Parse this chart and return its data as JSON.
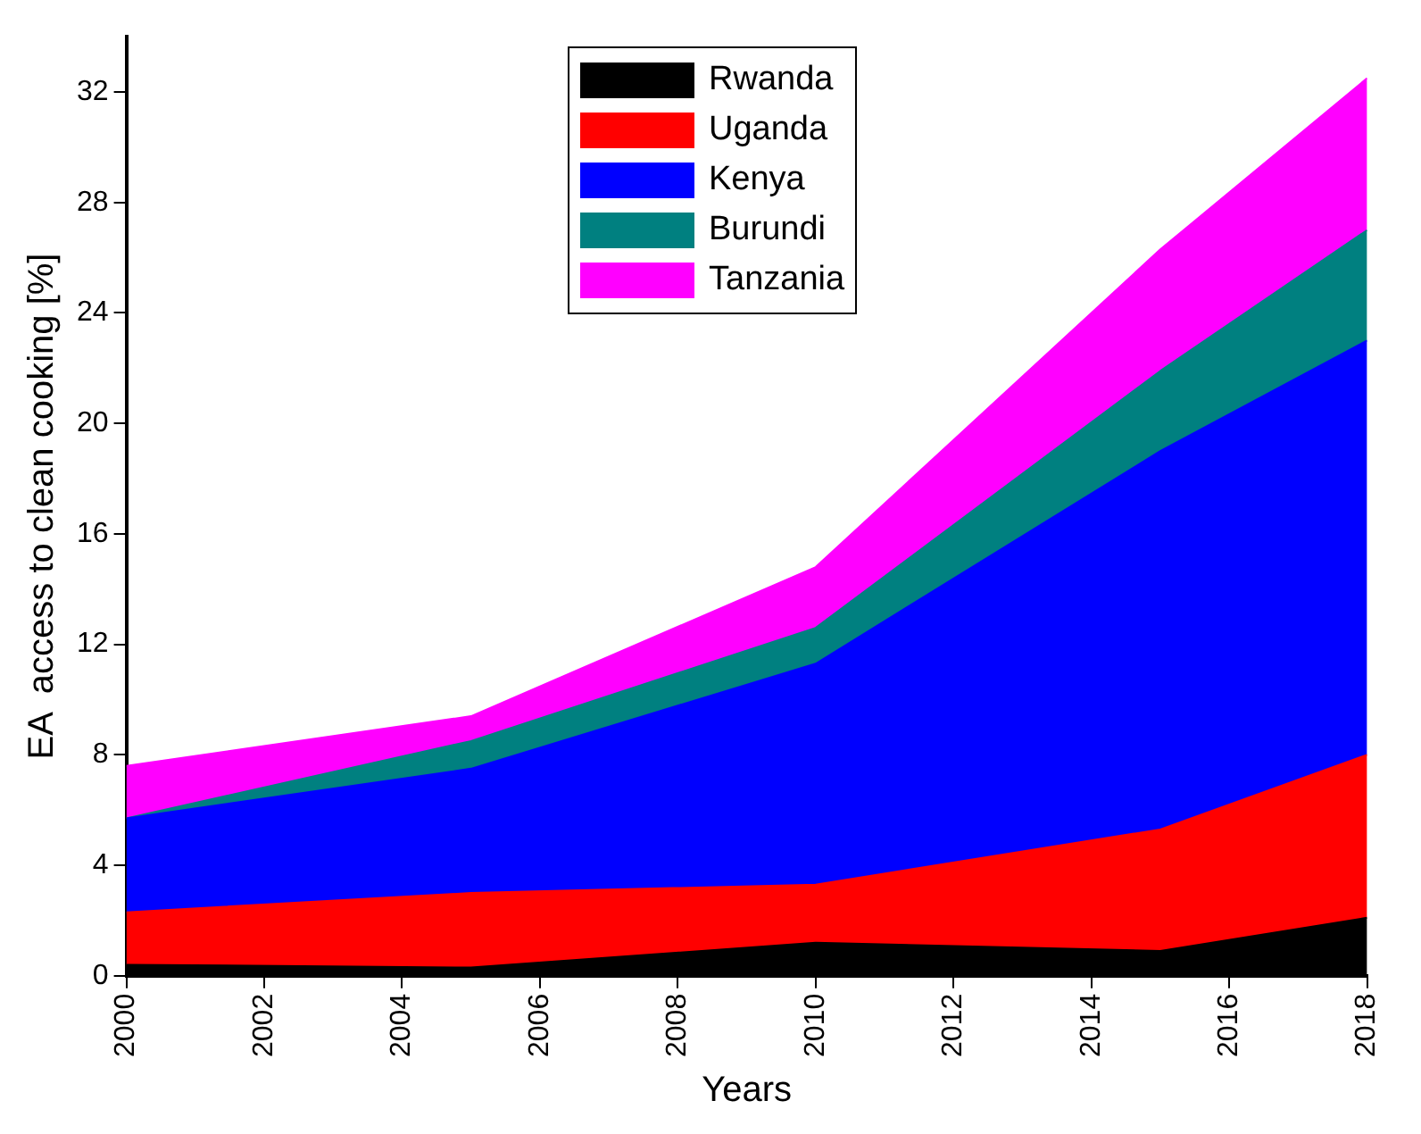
{
  "chart_data": {
    "type": "area",
    "stacked": true,
    "xlabel": "Years",
    "ylabel": "EA  access to clean cooking [%]",
    "x": [
      2000,
      2005,
      2010,
      2015,
      2018
    ],
    "series": [
      {
        "name": "Rwanda",
        "color": "#000000",
        "values": [
          0.4,
          0.3,
          1.2,
          0.9,
          2.1
        ]
      },
      {
        "name": "Uganda",
        "color": "#ff0000",
        "values": [
          1.9,
          2.7,
          2.1,
          4.4,
          5.9
        ]
      },
      {
        "name": "Kenya",
        "color": "#0000ff",
        "values": [
          3.4,
          4.5,
          8.0,
          13.7,
          15.0
        ]
      },
      {
        "name": "Burundi",
        "color": "#008080",
        "values": [
          0,
          1.0,
          1.3,
          2.9,
          4.0
        ]
      },
      {
        "name": "Tanzania",
        "color": "#ff00ff",
        "values": [
          1.9,
          0.9,
          2.2,
          4.4,
          5.5
        ]
      }
    ],
    "xlim": [
      2000,
      2018
    ],
    "xticks": [
      2000,
      2002,
      2004,
      2006,
      2008,
      2010,
      2012,
      2014,
      2016,
      2018
    ],
    "ylim": [
      0,
      34
    ],
    "yticks": [
      0,
      4,
      8,
      12,
      16,
      20,
      24,
      28,
      32
    ],
    "grid": false,
    "legend": "top"
  }
}
